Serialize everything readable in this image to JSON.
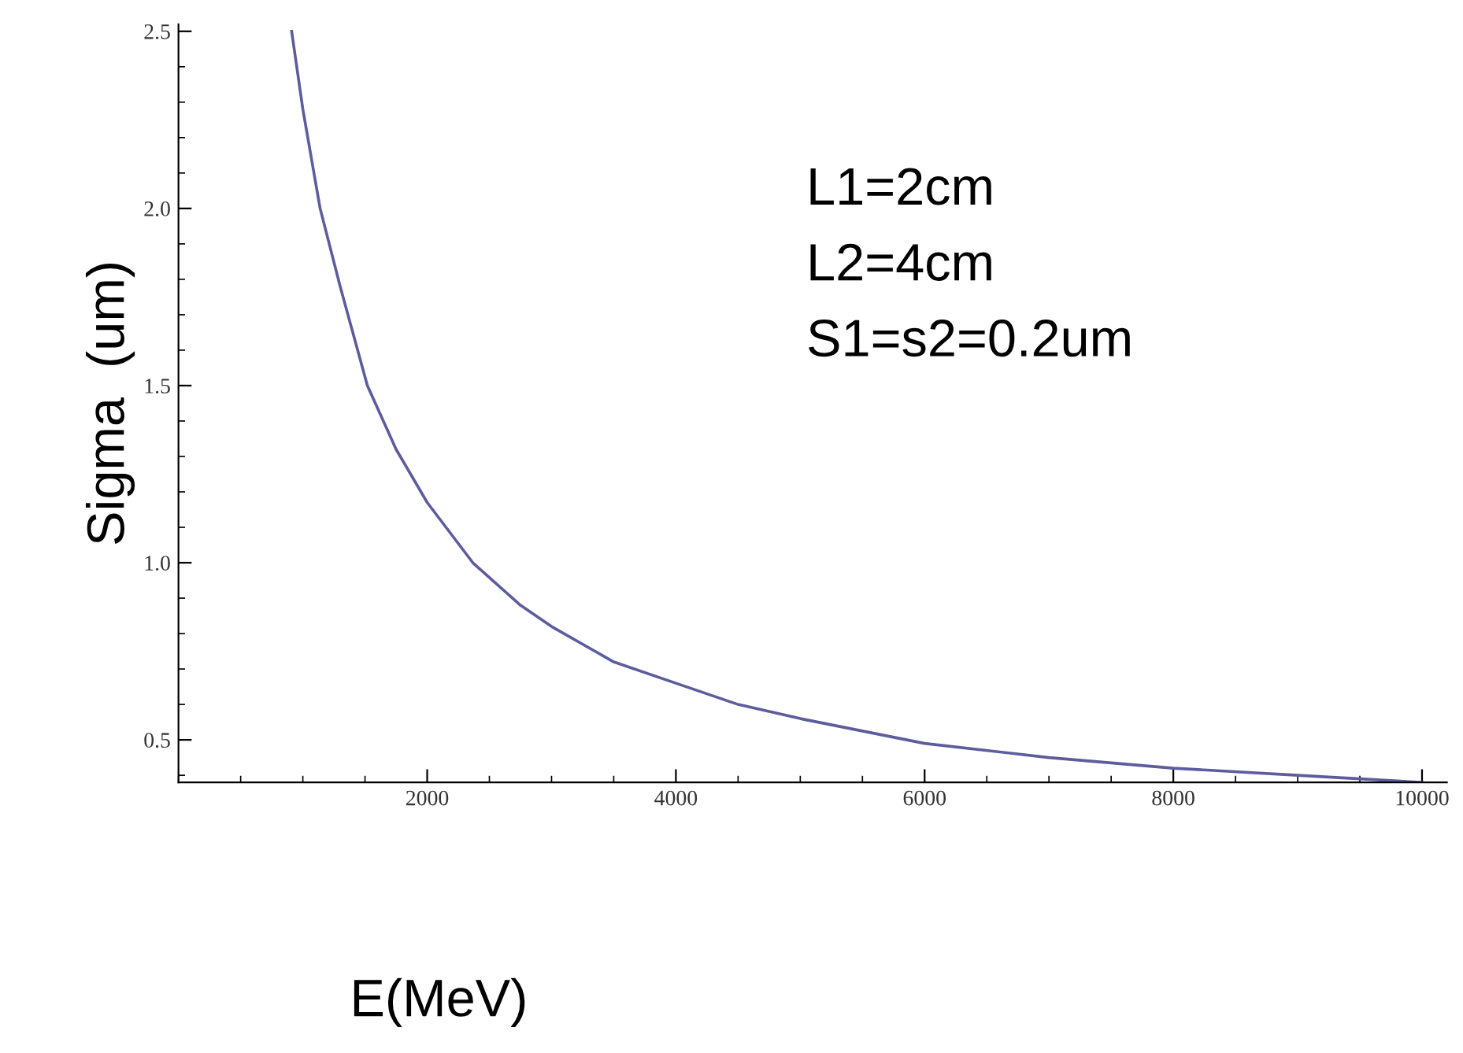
{
  "chart_data": {
    "type": "line",
    "xlabel": "E(MeV)",
    "ylabel": "Sigma  (um)",
    "x": [
      910,
      1000,
      1139,
      1300,
      1519,
      1750,
      2000,
      2367,
      2750,
      3000,
      3500,
      4000,
      4500,
      5000,
      6000,
      7000,
      8000,
      9000,
      10000
    ],
    "series": [
      {
        "color": "#5c5c9e",
        "values": [
          2.5,
          2.28,
          2.0,
          1.78,
          1.5,
          1.32,
          1.17,
          1.0,
          0.88,
          0.82,
          0.72,
          0.66,
          0.6,
          0.56,
          0.49,
          0.45,
          0.42,
          0.4,
          0.38
        ]
      }
    ],
    "xlim": [
      0,
      10200
    ],
    "ylim": [
      0.38,
      2.52
    ],
    "xticks": [
      2000,
      4000,
      6000,
      8000,
      10000
    ],
    "yticks": [
      {
        "value": 0.5,
        "label": "0.5"
      },
      {
        "value": 1.0,
        "label": "1.0"
      },
      {
        "value": 1.5,
        "label": "1.5"
      },
      {
        "value": 2.0,
        "label": "2.0"
      },
      {
        "value": 2.5,
        "label": "2.5"
      }
    ],
    "annotations": [
      "L1=2cm",
      "L2=4cm",
      "S1=s2=0.2um"
    ],
    "grid": false,
    "legend": false,
    "marker": "none",
    "line_style": "solid"
  }
}
